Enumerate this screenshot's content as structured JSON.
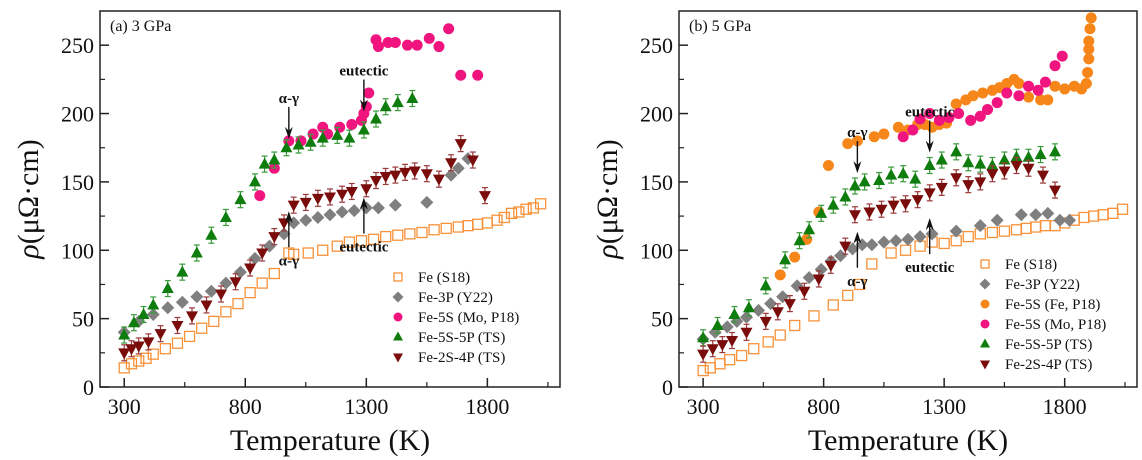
{
  "chart_data": [
    {
      "type": "scatter",
      "panel_label": "(a) 3 GPa",
      "xlabel": "Temperature (K)",
      "ylabel_symbol": "ρ",
      "ylabel_unit": "(μΩ·cm)",
      "xlim": [
        200,
        2100
      ],
      "ylim": [
        0,
        275
      ],
      "xticks": [
        300,
        800,
        1300,
        1800
      ],
      "xticks_minor": [
        550,
        1050,
        1550,
        2050
      ],
      "yticks": [
        0,
        50,
        100,
        150,
        200,
        250
      ],
      "yticks_minor": [
        25,
        75,
        125,
        175,
        225
      ],
      "legend_position": "bottom-right",
      "series": [
        {
          "name": "Fe (S18)",
          "marker": "open-square",
          "color": "#f7923a",
          "x": [
            300,
            330,
            360,
            390,
            420,
            470,
            520,
            570,
            620,
            670,
            720,
            770,
            820,
            870,
            920,
            980,
            1000,
            1060,
            1120,
            1180,
            1230,
            1280,
            1330,
            1380,
            1430,
            1480,
            1530,
            1580,
            1630,
            1680,
            1720,
            1760,
            1800,
            1840,
            1870,
            1900,
            1930,
            1960,
            1990,
            2020
          ],
          "y": [
            14,
            17,
            19,
            21,
            24,
            28,
            32,
            37,
            43,
            48,
            55,
            61,
            69,
            76,
            83,
            98,
            97,
            98,
            100,
            103,
            106,
            107,
            108,
            110,
            111,
            112,
            113,
            115,
            116,
            117,
            118,
            119,
            120,
            122,
            124,
            127,
            128,
            130,
            131,
            134
          ]
        },
        {
          "name": "Fe-3P (Y22)",
          "marker": "diamond",
          "color": "#7f7f7f",
          "x": [
            300,
            360,
            420,
            480,
            540,
            600,
            660,
            720,
            780,
            840,
            900,
            960,
            1000,
            1050,
            1100,
            1150,
            1200,
            1250,
            1300,
            1350,
            1420,
            1550,
            1650,
            1680,
            1720
          ],
          "y": [
            40,
            48,
            53,
            58,
            62,
            66,
            70,
            76,
            84,
            94,
            103,
            112,
            120,
            122,
            124,
            126,
            128,
            129,
            131,
            131,
            133,
            135,
            155,
            160,
            167
          ]
        },
        {
          "name": "Fe-5S (Mo, P18)",
          "marker": "circle",
          "color": "#f0147f",
          "x": [
            860,
            920,
            980,
            1030,
            1080,
            1120,
            1140,
            1190,
            1240,
            1280,
            1290,
            1300,
            1310,
            1340,
            1350,
            1390,
            1420,
            1470,
            1510,
            1560,
            1600,
            1640,
            1690,
            1760
          ],
          "y": [
            140,
            160,
            180,
            180,
            185,
            190,
            185,
            190,
            192,
            195,
            200,
            205,
            215,
            254,
            249,
            252,
            252,
            250,
            250,
            255,
            249,
            262,
            228,
            228
          ]
        },
        {
          "name": "Fe-5S-5P (TS)",
          "marker": "triangle-up",
          "color": "#0e7d0e",
          "x": [
            300,
            340,
            380,
            420,
            480,
            540,
            600,
            660,
            720,
            780,
            840,
            880,
            920,
            970,
            1020,
            1070,
            1120,
            1180,
            1230,
            1290,
            1340,
            1380,
            1430,
            1490
          ],
          "y": [
            38,
            47,
            53,
            60,
            72,
            84,
            98,
            111,
            124,
            137,
            150,
            163,
            166,
            175,
            177,
            179,
            182,
            184,
            182,
            188,
            196,
            205,
            208,
            211
          ]
        },
        {
          "name": "Fe-2S-4P (TS)",
          "marker": "triangle-down",
          "color": "#7a0c0c",
          "x": [
            300,
            330,
            360,
            400,
            450,
            520,
            580,
            640,
            700,
            760,
            820,
            870,
            920,
            960,
            1000,
            1050,
            1100,
            1150,
            1200,
            1240,
            1300,
            1340,
            1380,
            1420,
            1460,
            1500,
            1550,
            1600,
            1650,
            1690,
            1740,
            1790
          ],
          "y": [
            25,
            28,
            30,
            33,
            39,
            45,
            52,
            60,
            68,
            77,
            87,
            98,
            110,
            120,
            133,
            135,
            138,
            139,
            141,
            143,
            145,
            151,
            154,
            155,
            157,
            158,
            156,
            152,
            164,
            178,
            166,
            140
          ]
        }
      ],
      "annotations": [
        {
          "text": "α-γ",
          "x": 980,
          "y": 180,
          "arrow": "down"
        },
        {
          "text": "eutectic",
          "x": 1290,
          "y": 200,
          "arrow": "down"
        },
        {
          "text": "α-γ",
          "x": 980,
          "y": 130,
          "arrow": "up"
        },
        {
          "text": "eutectic",
          "x": 1290,
          "y": 140,
          "arrow": "up"
        }
      ]
    },
    {
      "type": "scatter",
      "panel_label": "(b) 5 GPa",
      "xlabel": "Temperature (K)",
      "ylabel_symbol": "ρ",
      "ylabel_unit": "(μΩ·cm)",
      "xlim": [
        200,
        2100
      ],
      "ylim": [
        0,
        275
      ],
      "xticks": [
        300,
        800,
        1300,
        1800
      ],
      "xticks_minor": [
        550,
        1050,
        1550,
        2050
      ],
      "yticks": [
        0,
        50,
        100,
        150,
        200,
        250
      ],
      "yticks_minor": [
        25,
        75,
        125,
        175,
        225
      ],
      "legend_position": "bottom-right",
      "series": [
        {
          "name": "Fe (S18)",
          "marker": "open-square",
          "color": "#f7923a",
          "x": [
            300,
            330,
            370,
            410,
            460,
            510,
            570,
            620,
            680,
            760,
            840,
            900,
            950,
            1000,
            1080,
            1140,
            1200,
            1250,
            1300,
            1350,
            1400,
            1450,
            1500,
            1550,
            1600,
            1640,
            1680,
            1720,
            1760,
            1800,
            1840,
            1880,
            1920,
            1960,
            2000,
            2040
          ],
          "y": [
            12,
            14,
            17,
            20,
            23,
            28,
            33,
            38,
            45,
            52,
            60,
            67,
            75,
            90,
            98,
            100,
            103,
            106,
            105,
            107,
            110,
            112,
            113,
            114,
            115,
            116,
            117,
            118,
            118,
            120,
            122,
            124,
            125,
            126,
            127,
            130
          ]
        },
        {
          "name": "Fe-3P (Y22)",
          "marker": "diamond",
          "color": "#7f7f7f",
          "x": [
            300,
            350,
            400,
            440,
            480,
            530,
            580,
            630,
            690,
            740,
            790,
            830,
            870,
            920,
            960,
            1000,
            1050,
            1100,
            1150,
            1200,
            1250,
            1350,
            1450,
            1520,
            1620,
            1680,
            1730,
            1780,
            1820
          ],
          "y": [
            35,
            40,
            44,
            48,
            51,
            56,
            61,
            66,
            74,
            80,
            86,
            92,
            96,
            101,
            104,
            104,
            106,
            107,
            108,
            110,
            112,
            114,
            118,
            122,
            126,
            126,
            127,
            122,
            122
          ]
        },
        {
          "name": "Fe-5S (Fe, P18)",
          "marker": "circle",
          "color": "#f7861a",
          "x": [
            620,
            680,
            730,
            780,
            820,
            900,
            940,
            1010,
            1050,
            1110,
            1150,
            1190,
            1220,
            1250,
            1280,
            1310,
            1350,
            1390,
            1420,
            1460,
            1500,
            1530,
            1560,
            1590,
            1610,
            1650,
            1700,
            1730,
            1760,
            1800,
            1840,
            1870,
            1890,
            1895,
            1900,
            1900,
            1900,
            1905,
            1910
          ],
          "y": [
            82,
            95,
            108,
            128,
            162,
            178,
            180,
            183,
            185,
            190,
            188,
            192,
            192,
            190,
            192,
            193,
            207,
            210,
            213,
            215,
            217,
            219,
            222,
            225,
            222,
            212,
            210,
            210,
            220,
            218,
            220,
            218,
            222,
            230,
            240,
            247,
            253,
            262,
            270
          ]
        },
        {
          "name": "Fe-5S (Mo, P18)",
          "marker": "circle",
          "color": "#f0147f",
          "x": [
            1130,
            1170,
            1200,
            1240,
            1280,
            1320,
            1360,
            1410,
            1450,
            1480,
            1520,
            1560,
            1610,
            1650,
            1690,
            1720,
            1760,
            1790
          ],
          "y": [
            183,
            188,
            196,
            200,
            195,
            197,
            200,
            195,
            198,
            203,
            208,
            215,
            213,
            220,
            217,
            223,
            235,
            242
          ]
        },
        {
          "name": "Fe-5S-5P (TS)",
          "marker": "triangle-up",
          "color": "#0e7d0e",
          "x": [
            300,
            360,
            430,
            490,
            560,
            640,
            700,
            740,
            790,
            840,
            890,
            930,
            970,
            1030,
            1080,
            1130,
            1180,
            1240,
            1290,
            1350,
            1400,
            1450,
            1500,
            1550,
            1600,
            1650,
            1700,
            1760
          ],
          "y": [
            36,
            45,
            53,
            58,
            74,
            93,
            107,
            115,
            127,
            133,
            139,
            147,
            150,
            151,
            155,
            156,
            152,
            162,
            166,
            172,
            164,
            163,
            162,
            166,
            168,
            168,
            170,
            172
          ]
        },
        {
          "name": "Fe-2S-4P (TS)",
          "marker": "triangle-down",
          "color": "#7a0c0c",
          "x": [
            300,
            340,
            380,
            420,
            480,
            560,
            610,
            660,
            720,
            780,
            830,
            890,
            930,
            990,
            1040,
            1090,
            1140,
            1190,
            1240,
            1290,
            1350,
            1400,
            1450,
            1500,
            1550,
            1600,
            1650,
            1710,
            1760
          ],
          "y": [
            24,
            28,
            31,
            34,
            40,
            48,
            55,
            61,
            70,
            79,
            89,
            103,
            126,
            128,
            130,
            133,
            134,
            137,
            142,
            146,
            153,
            148,
            150,
            156,
            158,
            162,
            160,
            155,
            144
          ]
        }
      ],
      "annotations": [
        {
          "text": "α-γ",
          "x": 940,
          "y": 155,
          "arrow": "down"
        },
        {
          "text": "eutectic",
          "x": 1240,
          "y": 170,
          "arrow": "down"
        },
        {
          "text": "α-γ",
          "x": 940,
          "y": 115,
          "arrow": "up"
        },
        {
          "text": "eutectic",
          "x": 1240,
          "y": 125,
          "arrow": "up"
        }
      ]
    }
  ]
}
